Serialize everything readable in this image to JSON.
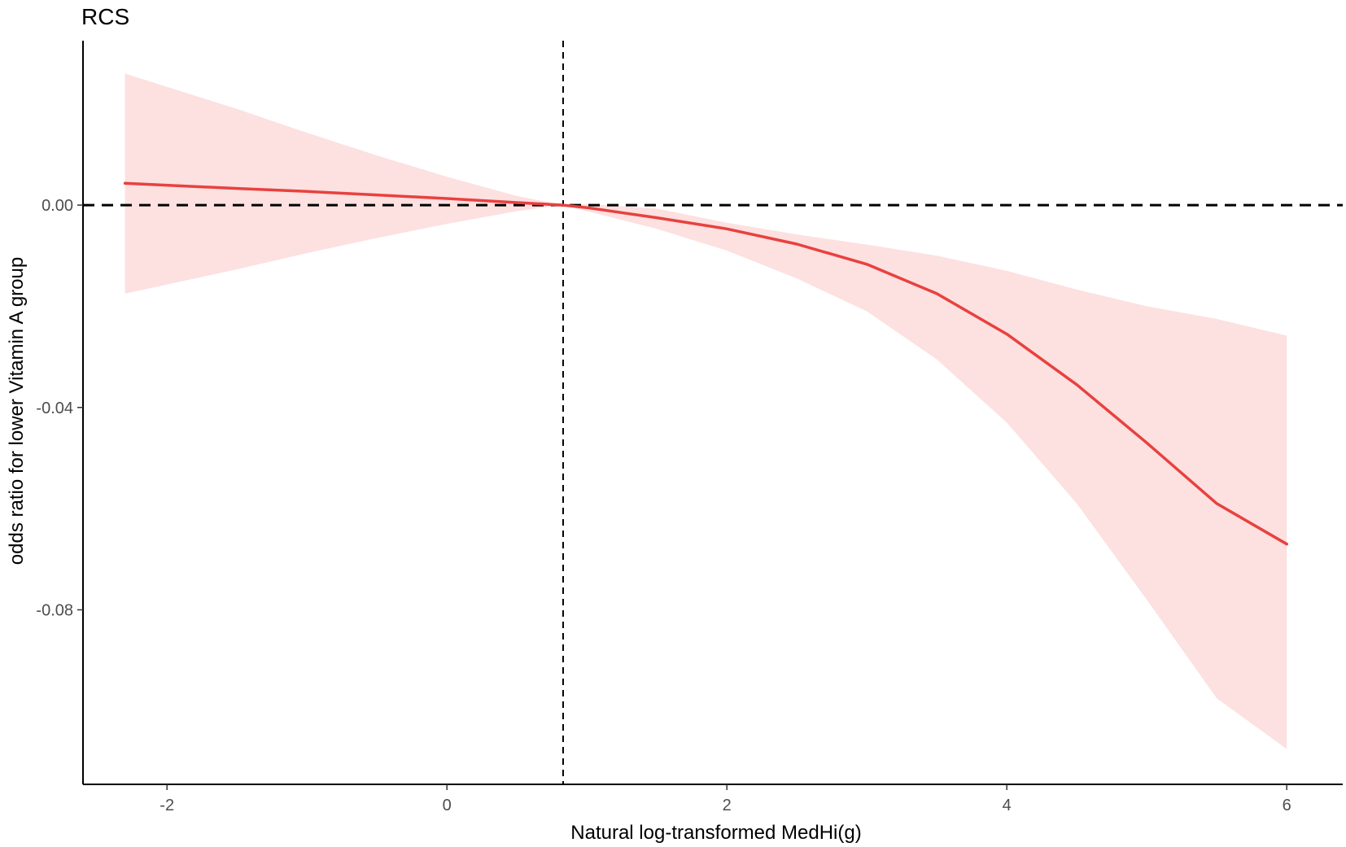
{
  "chart_data": {
    "type": "line",
    "title": "RCS",
    "xlabel": "Natural log-transformed MedHi(g)",
    "ylabel": "odds ratio for lower Vitamin A group",
    "xlim": [
      -2.6,
      6.4
    ],
    "ylim": [
      -0.1145,
      0.0325
    ],
    "x_ticks": [
      -2,
      0,
      2,
      4,
      6
    ],
    "x_tick_labels": [
      "-2",
      "0",
      "2",
      "4",
      "6"
    ],
    "y_ticks": [
      0.0,
      -0.04,
      -0.08
    ],
    "y_tick_labels": [
      "0.00",
      "-0.04",
      "-0.08"
    ],
    "reference_lines": {
      "vertical_x": 0.83,
      "horizontal_y": 0.0
    },
    "grid": false,
    "legend": "none",
    "series": [
      {
        "x": [
          -2.3,
          -1.5,
          -1.0,
          -0.5,
          0.0,
          0.5,
          0.83,
          1.0,
          1.5,
          2.0,
          2.5,
          3.0,
          3.5,
          4.0,
          4.5,
          5.0,
          5.5,
          6.0
        ],
        "y": [
          0.0043,
          0.0033,
          0.0027,
          0.002,
          0.0013,
          0.0005,
          0.0,
          -0.0005,
          -0.0025,
          -0.0047,
          -0.0077,
          -0.0117,
          -0.0175,
          -0.0255,
          -0.0355,
          -0.047,
          -0.059,
          -0.067
        ],
        "ci_lower": [
          -0.0175,
          -0.0127,
          -0.0095,
          -0.0065,
          -0.0037,
          -0.0012,
          0.0,
          -0.0012,
          -0.0047,
          -0.009,
          -0.0145,
          -0.021,
          -0.0305,
          -0.043,
          -0.059,
          -0.078,
          -0.0975,
          -0.1075
        ],
        "ci_upper": [
          0.026,
          0.019,
          0.0143,
          0.0098,
          0.0056,
          0.0018,
          0.0,
          0.0002,
          -0.0007,
          -0.0035,
          -0.0058,
          -0.0078,
          -0.01,
          -0.013,
          -0.0167,
          -0.02,
          -0.0225,
          -0.0258
        ]
      }
    ]
  },
  "colors": {
    "line": "#e8413f",
    "ribbon": "#fde0e0",
    "axis": "#000000",
    "reference": "#000000"
  }
}
